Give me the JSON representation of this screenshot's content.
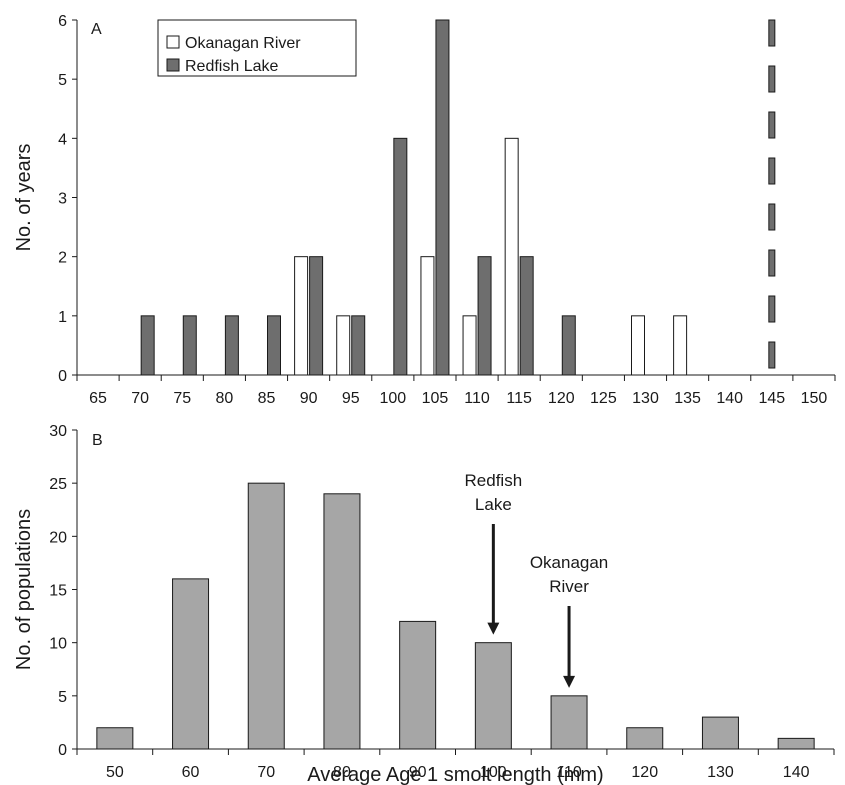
{
  "chart_data": [
    {
      "panel": "A",
      "type": "bar",
      "ylabel": "No. of years",
      "xlabel": "",
      "ylim": [
        0,
        6
      ],
      "yticks": [
        0,
        1,
        2,
        3,
        4,
        5,
        6
      ],
      "categories": [
        "65",
        "70",
        "75",
        "80",
        "85",
        "90",
        "95",
        "100",
        "105",
        "110",
        "115",
        "120",
        "125",
        "130",
        "135",
        "140",
        "145",
        "150"
      ],
      "series": [
        {
          "name": "Okanagan River",
          "color": "#ffffff",
          "values": [
            0,
            0,
            0,
            0,
            0,
            2,
            1,
            0,
            2,
            1,
            4,
            0,
            0,
            1,
            1,
            0,
            0,
            0
          ]
        },
        {
          "name": "Redfish Lake",
          "color": "#6e6e6e",
          "values": [
            0,
            1,
            1,
            1,
            1,
            2,
            1,
            4,
            6,
            2,
            2,
            1,
            0,
            0,
            0,
            0,
            0,
            0
          ]
        }
      ],
      "reference_line": {
        "x": "145",
        "style": "dashed",
        "color": "#6e6e6e"
      },
      "legend_position": "top-left"
    },
    {
      "panel": "B",
      "type": "bar",
      "ylabel": "No. of populations",
      "xlabel": "Average Age 1 smolt length (mm)",
      "ylim": [
        0,
        30
      ],
      "yticks": [
        0,
        5,
        10,
        15,
        20,
        25,
        30
      ],
      "categories": [
        "50",
        "60",
        "70",
        "80",
        "90",
        "100",
        "110",
        "120",
        "130",
        "140"
      ],
      "series": [
        {
          "color": "#a6a6a6",
          "values": [
            2,
            16,
            25,
            24,
            12,
            10,
            5,
            2,
            3,
            1
          ]
        }
      ],
      "annotations": [
        {
          "lines": [
            "Redfish",
            "Lake"
          ],
          "category": "100"
        },
        {
          "lines": [
            "Okanagan",
            "River"
          ],
          "category": "110"
        }
      ]
    }
  ]
}
